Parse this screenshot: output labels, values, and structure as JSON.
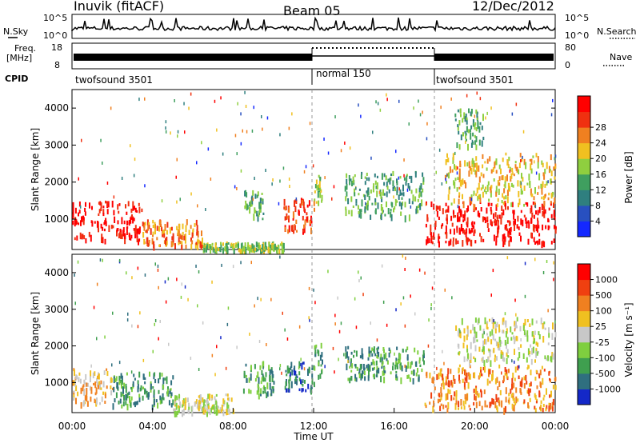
{
  "header": {
    "station": "Inuvik (fitACF)",
    "beam": "Beam 05",
    "date": "12/Dec/2012"
  },
  "strip_nsky": {
    "label": "N.Sky",
    "left_ticks": [
      "10^5",
      "10^0"
    ],
    "right_ticks": [
      "10^5",
      "10^0"
    ],
    "right_label": "N.Search"
  },
  "strip_freq": {
    "label_line1": "Freq.",
    "label_line2": "[MHz]",
    "left_ticks": [
      "18",
      "8"
    ],
    "right_ticks": [
      "80",
      "0"
    ],
    "right_label": "Nave"
  },
  "strip_cpid": {
    "label": "CPID",
    "segments": [
      {
        "name": "twofsound 3501",
        "start_hour": 0,
        "end_hour": 12
      },
      {
        "name": "normal 150",
        "start_hour": 12,
        "end_hour": 18
      },
      {
        "name": "twofsound 3501",
        "start_hour": 18,
        "end_hour": 24
      }
    ]
  },
  "chart_data": [
    {
      "type": "heatmap",
      "ylabel": "Slant Range [km]",
      "yticks": [
        1000,
        2000,
        3000,
        4000
      ],
      "ylim": [
        180,
        4500
      ],
      "xlim": [
        0,
        24
      ],
      "colorbar": {
        "label": "Power [dB]",
        "ticks": [
          "4",
          "8",
          "12",
          "16",
          "20",
          "24",
          "28"
        ],
        "colors": [
          "#1428ff",
          "#2850c0",
          "#2f7f7f",
          "#3f9f5f",
          "#8fcf3f",
          "#f0c020",
          "#f08020",
          "#f03010",
          "#ff0000"
        ]
      },
      "regions": [
        {
          "x": [
            0.0,
            3.5
          ],
          "y": [
            450,
            1500
          ],
          "level": 8
        },
        {
          "x": [
            3.5,
            6.5
          ],
          "y": [
            300,
            1000
          ],
          "level": 6
        },
        {
          "x": [
            6.5,
            10.5
          ],
          "y": [
            180,
            400
          ],
          "level": 4
        },
        {
          "x": [
            10.5,
            12.0
          ],
          "y": [
            700,
            1600
          ],
          "level": 7
        },
        {
          "x": [
            8.5,
            9.5
          ],
          "y": [
            1000,
            1800
          ],
          "level": 3
        },
        {
          "x": [
            12.0,
            12.4
          ],
          "y": [
            1400,
            2200
          ],
          "level": 4
        },
        {
          "x": [
            13.5,
            17.5
          ],
          "y": [
            1100,
            2300
          ],
          "level": 3
        },
        {
          "x": [
            17.5,
            24.0
          ],
          "y": [
            400,
            1500
          ],
          "level": 8
        },
        {
          "x": [
            18.5,
            24.0
          ],
          "y": [
            1400,
            2800
          ],
          "level": 5
        },
        {
          "x": [
            19.0,
            20.5
          ],
          "y": [
            3000,
            4000
          ],
          "level": 3
        }
      ]
    },
    {
      "type": "heatmap",
      "xlabel": "Time UT",
      "ylabel": "Slant Range [km]",
      "yticks": [
        1000,
        2000,
        3000,
        4000
      ],
      "ylim": [
        180,
        4500
      ],
      "xlim": [
        0,
        24
      ],
      "xticks": [
        "00:00",
        "04:00",
        "08:00",
        "12:00",
        "16:00",
        "20:00",
        "00:00"
      ],
      "colorbar": {
        "label": "Velocity [m s⁻¹]",
        "ticks": [
          "1000",
          "500",
          "100",
          "25",
          "-25",
          "-100",
          "-500",
          "-1000"
        ],
        "colors": [
          "#1428c8",
          "#2f6f7f",
          "#3f9f4f",
          "#7fcf3f",
          "#c8c8c8",
          "#f0c020",
          "#f08020",
          "#f04010",
          "#ff0000"
        ]
      },
      "regions": [
        {
          "x": [
            0.0,
            2.0
          ],
          "y": [
            450,
            1400
          ],
          "level": 5
        },
        {
          "x": [
            2.0,
            5.0
          ],
          "y": [
            400,
            1300
          ],
          "level": 2
        },
        {
          "x": [
            5.0,
            8.0
          ],
          "y": [
            200,
            700
          ],
          "level": 4
        },
        {
          "x": [
            8.5,
            10.0
          ],
          "y": [
            700,
            1600
          ],
          "level": 2
        },
        {
          "x": [
            10.5,
            12.0
          ],
          "y": [
            800,
            1600
          ],
          "level": 1
        },
        {
          "x": [
            12.0,
            12.4
          ],
          "y": [
            1200,
            2100
          ],
          "level": 2
        },
        {
          "x": [
            13.5,
            17.5
          ],
          "y": [
            1100,
            2000
          ],
          "level": 2
        },
        {
          "x": [
            17.5,
            24.0
          ],
          "y": [
            300,
            1500
          ],
          "level": 6
        },
        {
          "x": [
            19.0,
            24.0
          ],
          "y": [
            1600,
            2800
          ],
          "level": 4
        }
      ]
    }
  ]
}
